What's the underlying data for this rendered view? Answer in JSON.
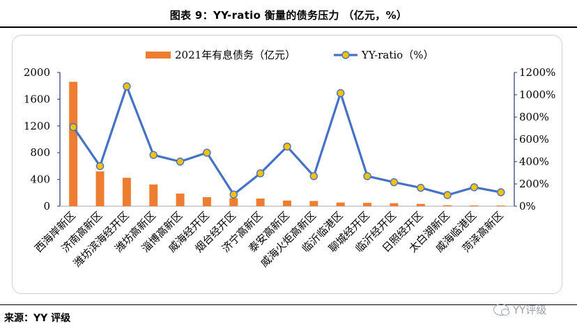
{
  "header": {
    "title": "图表 9：YY-ratio 衡量的债务压力 （亿元，%）"
  },
  "footer": {
    "source": "来源：YY 评级",
    "brand": "YY评级"
  },
  "colors": {
    "bar": "#ed7d31",
    "line": "#4472c4",
    "marker_fill": "#ffc000",
    "axis": "#1f3864"
  },
  "chart_data": {
    "type": "bar",
    "categories": [
      "西海岸新区",
      "济南高新区",
      "潍坊滨海经开区",
      "潍坊高新区",
      "淄博高新区",
      "威海经开区",
      "烟台经开区",
      "济宁高新区",
      "泰安高新区",
      "威海火炬高新区",
      "临沂临港区",
      "聊城经开区",
      "临沂经开区",
      "日照经开区",
      "太白湖新区",
      "威海临港区",
      "菏泽高新区"
    ],
    "series": [
      {
        "name": "2021年有息债务（亿元）",
        "type": "bar",
        "axis": "left",
        "values": [
          1860,
          520,
          425,
          325,
          190,
          135,
          120,
          115,
          85,
          78,
          55,
          50,
          45,
          35,
          15,
          12,
          10
        ]
      },
      {
        "name": "YY-ratio（%）",
        "type": "line",
        "axis": "right",
        "values": [
          710,
          360,
          1075,
          460,
          400,
          480,
          105,
          295,
          535,
          270,
          1015,
          270,
          215,
          165,
          100,
          170,
          125
        ]
      }
    ],
    "y_left": {
      "ylim": [
        0,
        2000
      ],
      "ticks": [
        "0",
        "400",
        "800",
        "1200",
        "1600",
        "2000"
      ]
    },
    "y_right": {
      "ylim": [
        0,
        1200
      ],
      "ticks": [
        "0%",
        "200%",
        "400%",
        "600%",
        "800%",
        "1000%",
        "1200%"
      ]
    },
    "legend": "top",
    "grid": false
  }
}
